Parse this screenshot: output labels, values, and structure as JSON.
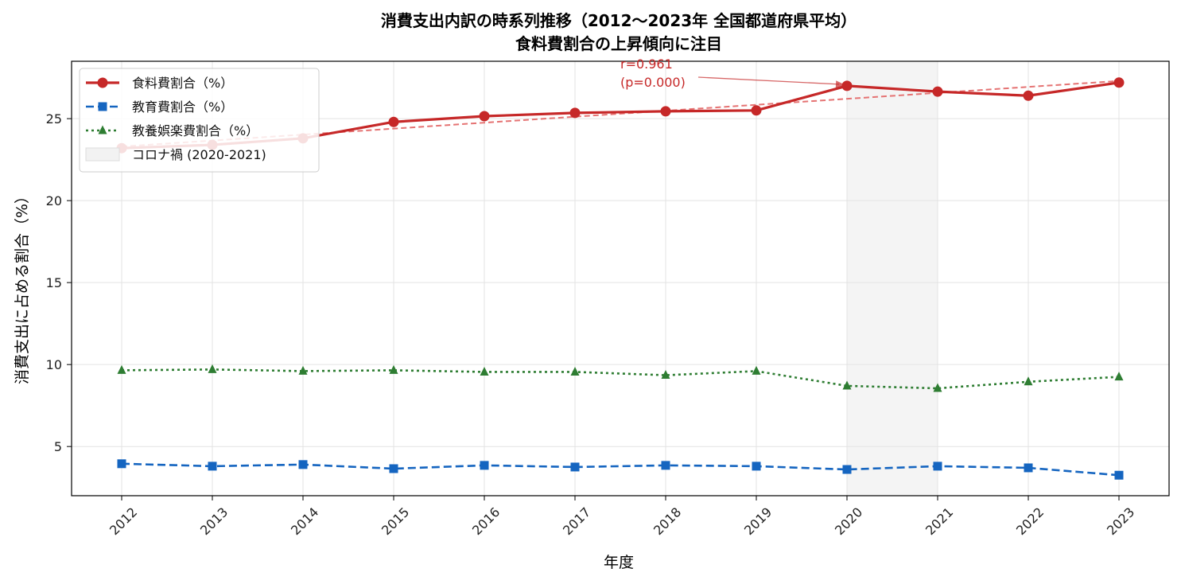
{
  "chart_data": {
    "type": "line",
    "title": "消費支出内訳の時系列推移（2012〜2023年 全国都道府県平均）",
    "subtitle": "食料費割合の上昇傾向に注目",
    "xlabel": "年度",
    "ylabel": "消費支出に占める割合（%）",
    "categories": [
      "2012",
      "2013",
      "2014",
      "2015",
      "2016",
      "2017",
      "2018",
      "2019",
      "2020",
      "2021",
      "2022",
      "2023"
    ],
    "ylim": [
      2.0,
      28.5
    ],
    "yticks": [
      5,
      10,
      15,
      20,
      25
    ],
    "grid": true,
    "legend_position": "top-left",
    "series": [
      {
        "name": "食料費割合（%）",
        "color": "#c62828",
        "line_style": "solid",
        "marker": "circle",
        "values": [
          23.2,
          23.4,
          23.8,
          24.8,
          25.15,
          25.35,
          25.45,
          25.5,
          27.0,
          26.65,
          26.4,
          27.2
        ]
      },
      {
        "name": "教育費割合（%）",
        "color": "#1565c0",
        "line_style": "dashed",
        "marker": "square",
        "values": [
          3.95,
          3.8,
          3.9,
          3.65,
          3.85,
          3.75,
          3.85,
          3.8,
          3.6,
          3.8,
          3.7,
          3.25
        ]
      },
      {
        "name": "教養娯楽費割合（%）",
        "color": "#2e7d32",
        "line_style": "dotted",
        "marker": "triangle",
        "values": [
          9.65,
          9.7,
          9.6,
          9.65,
          9.55,
          9.55,
          9.35,
          9.6,
          8.7,
          8.55,
          8.95,
          9.25
        ]
      }
    ],
    "trend_line": {
      "series": "食料費割合（%）",
      "start_value": 23.3,
      "end_value": 27.3,
      "color": "#e57373",
      "line_style": "dashed"
    },
    "shaded_region": {
      "label": "コロナ禍 (2020-2021)",
      "from": "2020",
      "to": "2021",
      "color": "#eeeeee"
    },
    "annotation": {
      "line1": "r=0.961",
      "line2": "(p=0.000)",
      "target_category": "2020",
      "target_value": 27.0,
      "color": "#c62828"
    }
  }
}
